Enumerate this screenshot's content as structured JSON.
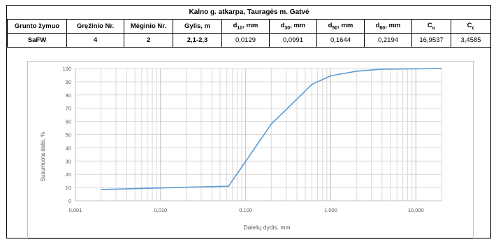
{
  "header": {
    "title": "Kalno g. atkarpa, Tauragės m. Gatvė",
    "columns": [
      "Grunto žymuo",
      "Gręžinio Nr.",
      "Mėginio Nr.",
      "Gylis, m",
      "d10, mm",
      "d30, mm",
      "d50, mm",
      "d60, mm",
      "Cu",
      "Cc"
    ],
    "values": [
      "SaFW",
      "4",
      "2",
      "2,1-2,3",
      "0,0129",
      "0,0991",
      "0,1644",
      "0,2194",
      "16,9537",
      "3,4585"
    ]
  },
  "chart_data": {
    "type": "line",
    "title": "",
    "xlabel": "Dalelių dydis, mm",
    "ylabel": "Susumuota dalis, %",
    "xscale": "log",
    "xlim": [
      0.001,
      20
    ],
    "ylim": [
      0,
      100
    ],
    "xticks": [
      0.001,
      0.01,
      0.1,
      1,
      10
    ],
    "xtick_labels": [
      "0,001",
      "0,010",
      "0,100",
      "1,000",
      "10,000"
    ],
    "yticks": [
      0,
      10,
      20,
      30,
      40,
      50,
      60,
      70,
      80,
      90,
      100
    ],
    "grid": true,
    "line_color": "#5b9bd5",
    "series": [
      {
        "x": [
          0.002,
          0.063,
          0.2,
          0.6,
          1,
          2,
          4,
          20
        ],
        "y": [
          8.5,
          11,
          58,
          88,
          94.5,
          98,
          99.5,
          100
        ]
      }
    ]
  }
}
